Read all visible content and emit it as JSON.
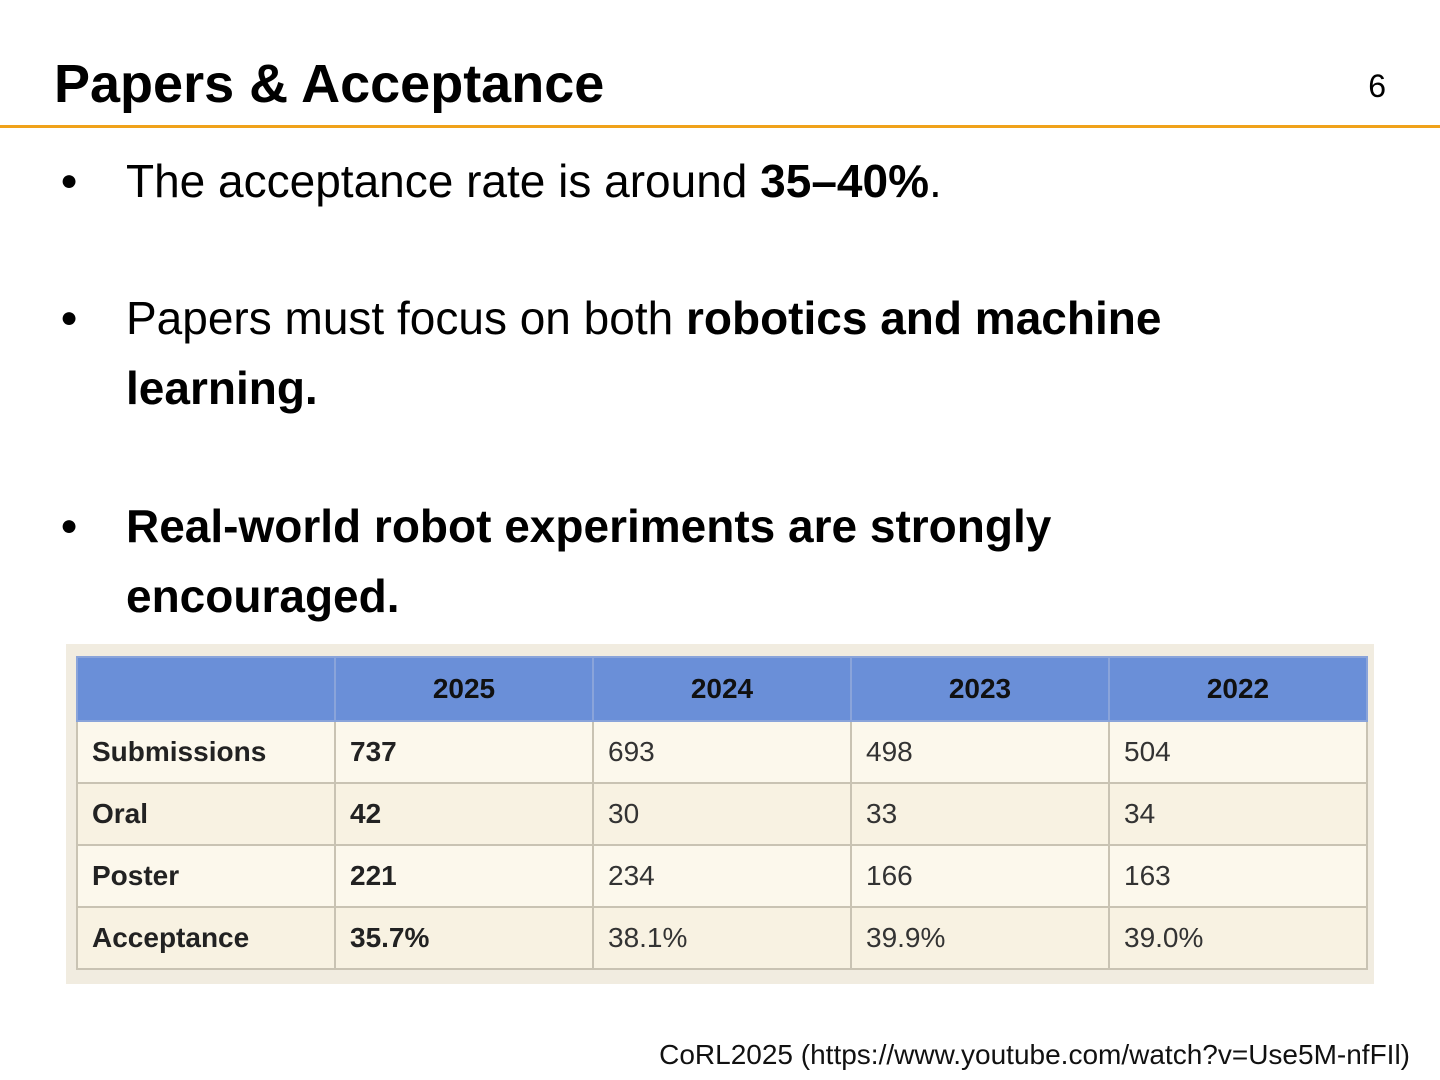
{
  "header": {
    "title": "Papers & Acceptance",
    "page_number": "6"
  },
  "bullets": [
    {
      "text_before": "The acceptance rate is around ",
      "bold": "35–40%",
      "text_after": "."
    },
    {
      "text_before": "Papers must focus on both ",
      "bold": "robotics and machine learning.",
      "text_after": ""
    },
    {
      "text_before": "",
      "bold": "Real-world robot experiments are strongly encouraged.",
      "text_after": ""
    }
  ],
  "bullet_glyph": "●",
  "table": {
    "header_corner": "",
    "years": [
      "2025",
      "2024",
      "2023",
      "2022"
    ],
    "rows": [
      {
        "label": "Submissions",
        "values": [
          "737",
          "693",
          "498",
          "504"
        ]
      },
      {
        "label": "Oral",
        "values": [
          "42",
          "30",
          "33",
          "34"
        ]
      },
      {
        "label": "Poster",
        "values": [
          "221",
          "234",
          "166",
          "163"
        ]
      },
      {
        "label": "Acceptance",
        "values": [
          "35.7%",
          "38.1%",
          "39.9%",
          "39.0%"
        ]
      }
    ],
    "colors": {
      "header_bg": "#6a8fd8",
      "row_bg": "#fcf8ec",
      "accent_rule": "#f0a21a"
    }
  },
  "footer": {
    "source": "CoRL2025 (https://www.youtube.com/watch?v=Use5M-nfFIl)"
  }
}
